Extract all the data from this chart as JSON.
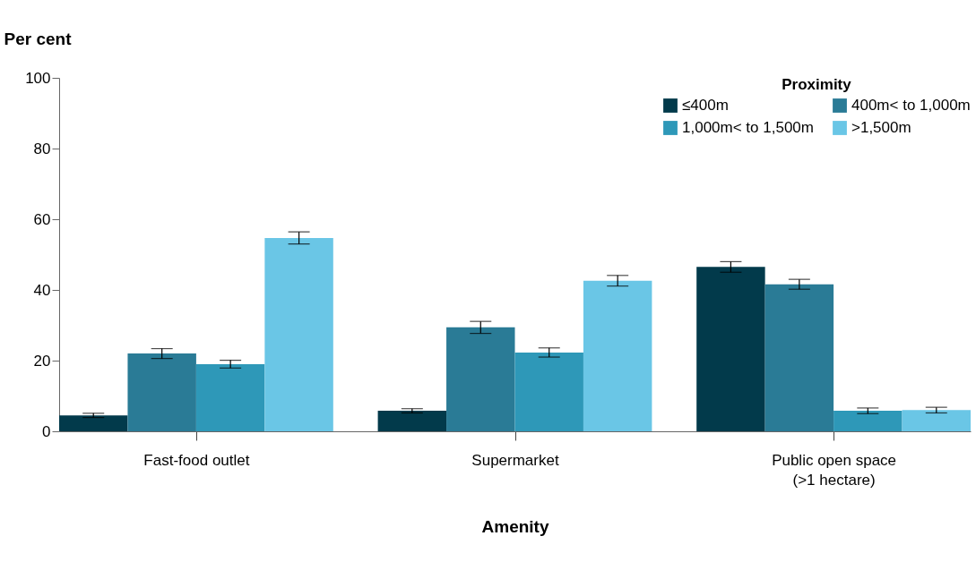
{
  "chart_data": {
    "type": "bar",
    "xlabel": "Amenity",
    "ylabel": "Per cent",
    "legend_title": "Proximity",
    "categories": [
      "Fast-food outlet",
      "Supermarket",
      "Public open space\n(>1 hectare)"
    ],
    "series": [
      {
        "name": "≤400m",
        "color": "#023a4b",
        "values": [
          4.5,
          5.8,
          46.5
        ],
        "errors": [
          0.6,
          0.6,
          1.5
        ]
      },
      {
        "name": "400m< to 1,000m",
        "color": "#2a7b96",
        "values": [
          22.0,
          29.4,
          41.6
        ],
        "errors": [
          1.4,
          1.7,
          1.4
        ]
      },
      {
        "name": "1,000m< to 1,500m",
        "color": "#2e98b8",
        "values": [
          19.0,
          22.3,
          5.8
        ],
        "errors": [
          1.1,
          1.3,
          0.8
        ]
      },
      {
        "name": ">1,500m",
        "color": "#6ac6e6",
        "values": [
          54.7,
          42.6,
          6.0
        ],
        "errors": [
          1.7,
          1.5,
          0.8
        ]
      }
    ],
    "ylim": [
      0,
      100
    ],
    "yticks": [
      0,
      20,
      40,
      60,
      80,
      100
    ],
    "grid": false,
    "legend": "top right"
  }
}
